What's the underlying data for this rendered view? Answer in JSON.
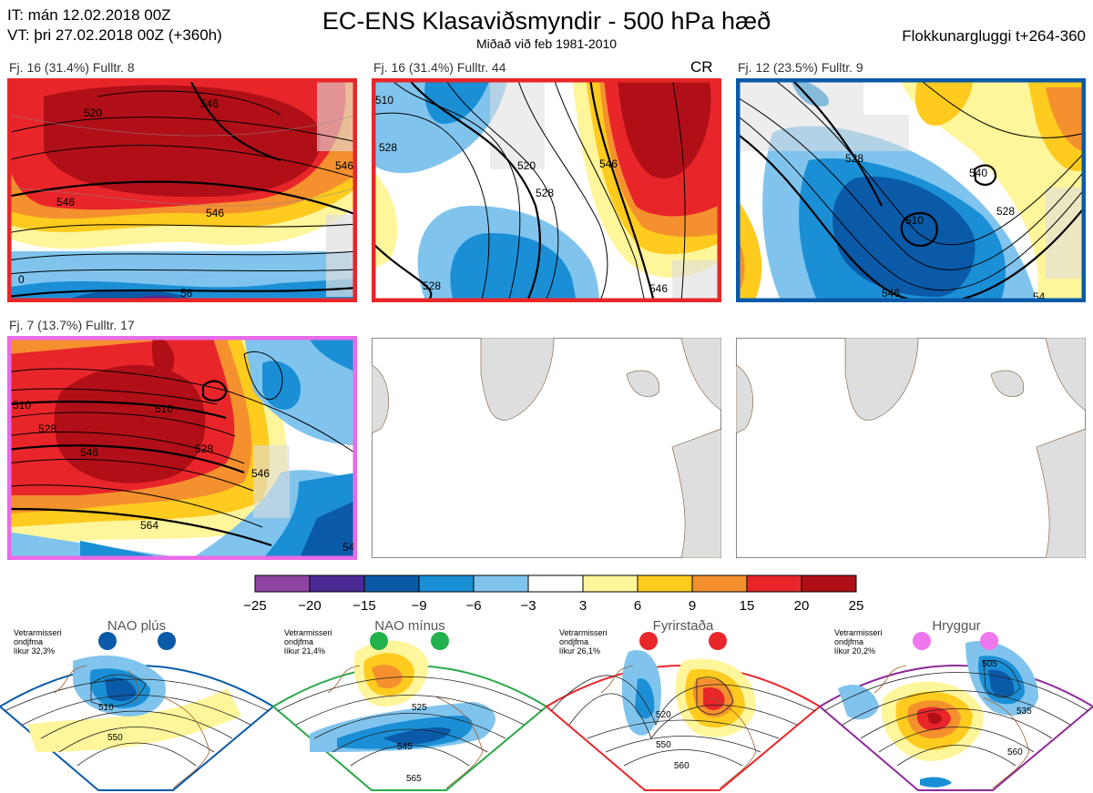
{
  "header": {
    "it_line": "IT: mán 12.02.2018 00Z",
    "vt_line": "VT: þri 27.02.2018 00Z  (+360h)",
    "title": "EC-ENS Klasaviðsmyndir - 500 hPa hæð",
    "subtitle": "Miðað við feb 1981-2010",
    "window": "Flokkunargluggi t+264-360"
  },
  "panels": [
    {
      "label": "Fj. 16 (31.4%)   Fulltr. 8",
      "border": "#e8262a",
      "contours": [
        "546",
        "546",
        "546",
        "520",
        "546",
        "0",
        "56"
      ]
    },
    {
      "label": "Fj. 16 (31.4%)   Fulltr. 44",
      "extra": "CR",
      "border": "#e8262a",
      "contours": [
        "510",
        "528",
        "546",
        "520",
        "528",
        "546",
        "528"
      ]
    },
    {
      "label": "Fj. 12 (23.5%)   Fulltr. 9",
      "border": "#0a5aa8",
      "contours": [
        "528",
        "510",
        "528",
        "546",
        "540",
        "54"
      ]
    },
    {
      "label": "Fj. 7 (13.7%)   Fulltr. 17",
      "border": "#e86be8",
      "contours": [
        "510",
        "528",
        "546",
        "510",
        "528",
        "546",
        "564",
        "54"
      ]
    }
  ],
  "colorbar": {
    "ticks": [
      "-25",
      "-20",
      "-15",
      "-9",
      "-6",
      "-3",
      "3",
      "6",
      "9",
      "15",
      "20",
      "25"
    ],
    "colors": [
      "#8e44a0",
      "#4b2a95",
      "#0a5aa8",
      "#1a8fd6",
      "#80c4ee",
      "#ffffff",
      "#fff59a",
      "#fecb1e",
      "#f5902e",
      "#e8262a",
      "#b00f17"
    ]
  },
  "regimes": [
    {
      "name": "NAO plús",
      "note1": "Vetrarmisseri",
      "note2": "ondjfma",
      "note3": "líkur 32,3%",
      "color": "#0a5aa8",
      "edge": "#0a5aa8",
      "labels": [
        "510",
        "550"
      ]
    },
    {
      "name": "NAO mínus",
      "note1": "Vetrarmisseri",
      "note2": "ondjfma",
      "note3": "líkur 21,4%",
      "color": "#22b14c",
      "edge": "#2aa84a",
      "labels": [
        "525",
        "545",
        "565"
      ]
    },
    {
      "name": "Fyrirstaða",
      "note1": "Vetrarmisseri",
      "note2": "ondjfma",
      "note3": "líkur 26,1%",
      "color": "#e8262a",
      "edge": "#e8262a",
      "labels": [
        "520",
        "550",
        "560"
      ]
    },
    {
      "name": "Hryggur",
      "note1": "Vetrarmisseri",
      "note2": "ondjfma",
      "note3": "líkur 20,2%",
      "color": "#ee77ee",
      "edge": "#8e2a9a",
      "labels": [
        "505",
        "535",
        "560"
      ]
    }
  ]
}
